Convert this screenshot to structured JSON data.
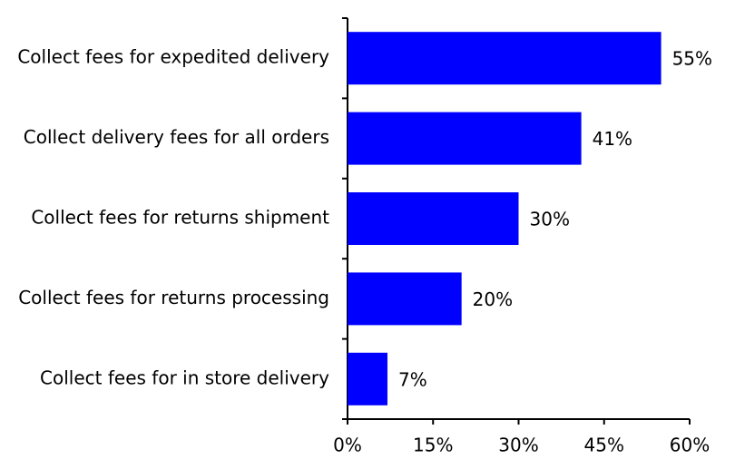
{
  "chart_data": {
    "type": "bar",
    "orientation": "horizontal",
    "categories": [
      "Collect fees for expedited delivery",
      "Collect delivery fees for all orders",
      "Collect fees for returns shipment",
      "Collect fees for returns processing",
      "Collect fees for in store delivery"
    ],
    "values": [
      55,
      41,
      30,
      20,
      7
    ],
    "value_labels": [
      "55%",
      "41%",
      "30%",
      "20%",
      "7%"
    ],
    "color": "#0000ff",
    "xlim": [
      0,
      60
    ],
    "xticks": [
      {
        "value": 0,
        "label": "0%"
      },
      {
        "value": 15,
        "label": "15%"
      },
      {
        "value": 30,
        "label": "30%"
      },
      {
        "value": 45,
        "label": "45%"
      },
      {
        "value": 60,
        "label": "60%"
      }
    ],
    "grid": false
  }
}
